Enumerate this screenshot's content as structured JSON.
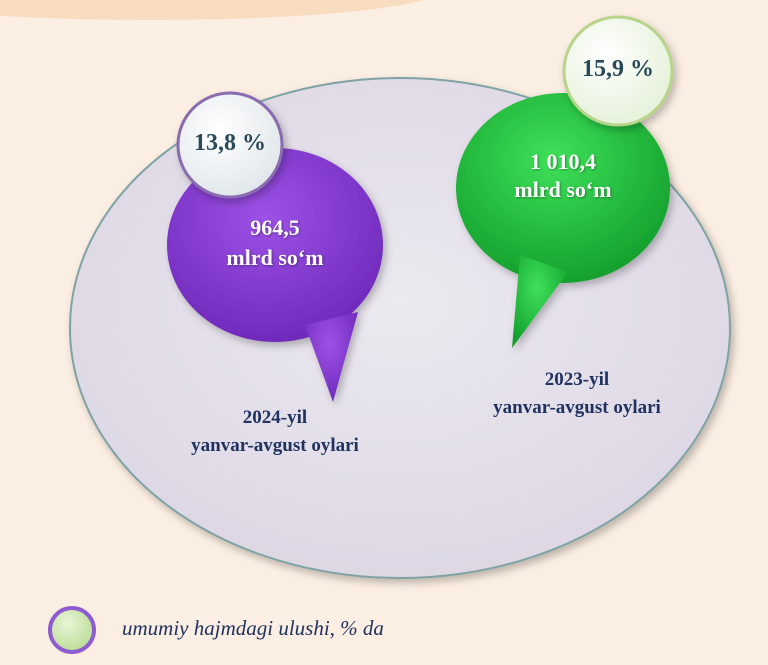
{
  "left_bubble": {
    "value": "964,5",
    "unit": "mlrd  so‘m",
    "share": "13,8 %",
    "period_year": "2024-yil",
    "period_months": "yanvar-avgust oylari"
  },
  "right_bubble": {
    "value": "1 010,4",
    "unit": "mlrd  so‘m",
    "share": "15,9 %",
    "period_year": "2023-yil",
    "period_months": "yanvar-avgust oylari"
  },
  "legend": {
    "label": "umumiy hajmdagi ulushi, % da"
  },
  "colors": {
    "purple": "#8b3fd4",
    "green": "#22c23a",
    "ellipse": "#e4e0ea",
    "background": "#fbeee2"
  }
}
